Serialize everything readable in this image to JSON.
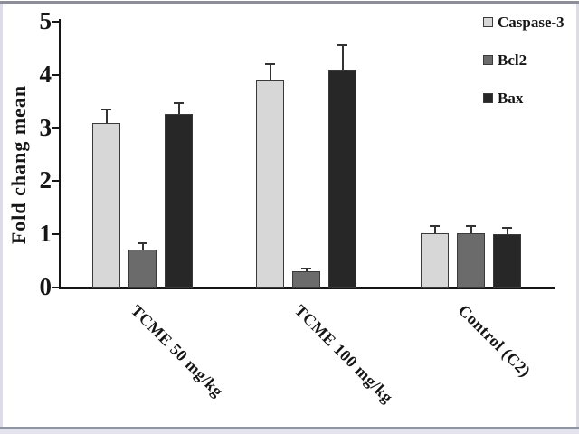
{
  "figure": {
    "ylabel": "Fold chang mean",
    "axis_color": "#161616",
    "background": "#ffffff",
    "frame_top_color": "#8e8e98",
    "frame_side_color": "#dcdce8"
  },
  "chart_data": {
    "type": "bar",
    "title": "",
    "xlabel": "",
    "ylabel": "Fold chang mean",
    "categories": [
      "TCME 50 mg/kg",
      "TCME 100 mg/kg",
      "Control (C2)"
    ],
    "series": [
      {
        "name": "Caspase-3",
        "color": "#d7d7d7",
        "values": [
          3.1,
          3.9,
          1.02
        ],
        "errors": [
          0.25,
          0.3,
          0.13
        ]
      },
      {
        "name": "Bcl2",
        "color": "#6b6b6b",
        "values": [
          0.72,
          0.3,
          1.02
        ],
        "errors": [
          0.12,
          0.06,
          0.13
        ]
      },
      {
        "name": "Bax",
        "color": "#272727",
        "values": [
          3.27,
          4.1,
          1.0
        ],
        "errors": [
          0.2,
          0.45,
          0.12
        ]
      }
    ],
    "ylim": [
      0,
      5
    ],
    "yticks": [
      0,
      1,
      2,
      3,
      4,
      5
    ],
    "grid": false,
    "error_bars": true,
    "legend_position": "top-right",
    "bar_orientation": "vertical"
  }
}
